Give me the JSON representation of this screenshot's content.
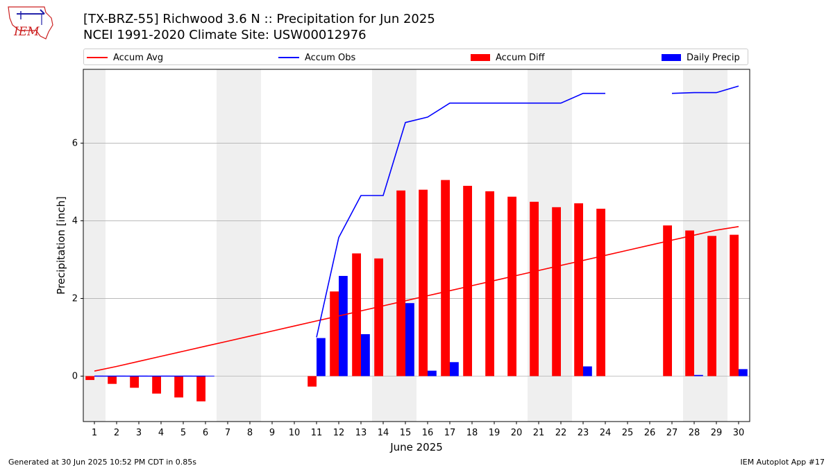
{
  "header": {
    "title_line1": "[TX-BRZ-55] Richwood 3.6 N :: Precipitation for Jun 2025",
    "title_line2": "NCEI 1991-2020 Climate Site: USW00012976",
    "logo_text": "IEM"
  },
  "legend": [
    {
      "label": "Accum Avg",
      "color": "#ff0000",
      "kind": "line"
    },
    {
      "label": "Accum Obs",
      "color": "#0000ff",
      "kind": "line"
    },
    {
      "label": "Accum Diff",
      "color": "#ff0000",
      "kind": "bar"
    },
    {
      "label": "Daily Precip",
      "color": "#0000ff",
      "kind": "bar"
    }
  ],
  "footer": {
    "left": "Generated at 30 Jun 2025 10:52 PM CDT in 0.85s",
    "right": "IEM Autoplot App #17"
  },
  "chart_data": {
    "type": "bar",
    "xlabel": "June 2025",
    "ylabel": "Precipitation [inch]",
    "xlim": [
      0.5,
      30.5
    ],
    "ylim": [
      -1.17,
      7.9
    ],
    "yticks": [
      0,
      2,
      4,
      6
    ],
    "days": [
      1,
      2,
      3,
      4,
      5,
      6,
      7,
      8,
      9,
      10,
      11,
      12,
      13,
      14,
      15,
      16,
      17,
      18,
      19,
      20,
      21,
      22,
      23,
      24,
      25,
      26,
      27,
      28,
      29,
      30
    ],
    "weekend_days": [
      1,
      7,
      8,
      14,
      15,
      21,
      22,
      28,
      29
    ],
    "grid": "horizontal",
    "legend_position": "top",
    "series": [
      {
        "name": "Accum Avg",
        "kind": "line",
        "color": "#ff0000",
        "values": [
          0.13,
          0.25,
          0.38,
          0.51,
          0.64,
          0.77,
          0.9,
          1.03,
          1.16,
          1.29,
          1.42,
          1.55,
          1.68,
          1.81,
          1.94,
          2.07,
          2.2,
          2.33,
          2.46,
          2.59,
          2.72,
          2.85,
          2.98,
          3.11,
          3.24,
          3.37,
          3.5,
          3.63,
          3.76,
          3.85
        ]
      },
      {
        "name": "Accum Obs",
        "kind": "line",
        "color": "#0000ff",
        "values": [
          0,
          0,
          0,
          0,
          0,
          0,
          null,
          null,
          null,
          null,
          1.0,
          3.57,
          4.65,
          4.65,
          6.53,
          6.67,
          7.03,
          7.03,
          7.03,
          7.03,
          7.03,
          7.03,
          7.28,
          7.28,
          null,
          null,
          7.28,
          7.3,
          7.3,
          7.47
        ]
      },
      {
        "name": "Accum Diff",
        "kind": "bar",
        "color": "#ff0000",
        "values": [
          -0.1,
          -0.2,
          -0.3,
          -0.45,
          -0.55,
          -0.65,
          null,
          null,
          null,
          null,
          -0.27,
          2.18,
          3.16,
          3.03,
          4.78,
          4.8,
          5.05,
          4.9,
          4.76,
          4.62,
          4.49,
          4.35,
          4.45,
          4.31,
          null,
          null,
          3.88,
          3.75,
          3.61,
          3.64
        ]
      },
      {
        "name": "Daily Precip",
        "kind": "bar",
        "color": "#0000ff",
        "values": [
          0.01,
          0.01,
          0.01,
          0.01,
          0.01,
          0.01,
          null,
          null,
          null,
          null,
          0.98,
          2.58,
          1.08,
          null,
          1.88,
          0.14,
          0.36,
          null,
          null,
          null,
          null,
          null,
          0.25,
          null,
          null,
          null,
          null,
          0.03,
          null,
          0.18
        ]
      }
    ]
  }
}
